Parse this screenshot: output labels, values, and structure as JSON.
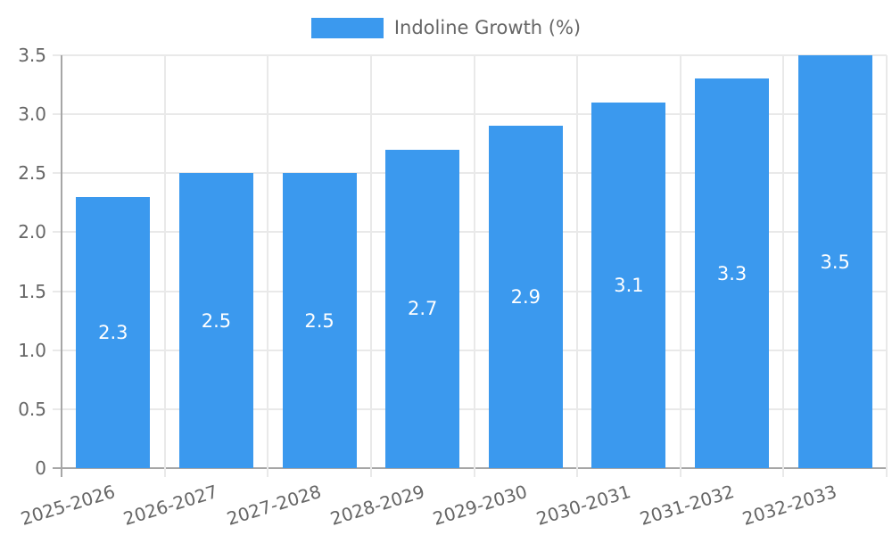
{
  "legend": {
    "label": "Indoline Growth (%)"
  },
  "chart_data": {
    "type": "bar",
    "title": "Indoline Growth (%)",
    "series_name": "Indoline Growth (%)",
    "categories": [
      "2025-2026",
      "2026-2027",
      "2027-2028",
      "2028-2029",
      "2029-2030",
      "2030-2031",
      "2031-2032",
      "2032-2033"
    ],
    "values": [
      2.3,
      2.5,
      2.5,
      2.7,
      2.9,
      3.1,
      3.3,
      3.5
    ],
    "value_labels": [
      "2.3",
      "2.5",
      "2.5",
      "2.7",
      "2.9",
      "3.1",
      "3.3",
      "3.5"
    ],
    "xlabel": "",
    "ylabel": "",
    "ylim": [
      0,
      3.5
    ],
    "yticks": [
      {
        "value": 3.5,
        "label": "3.5"
      },
      {
        "value": 3.0,
        "label": "3.0"
      },
      {
        "value": 2.5,
        "label": "2.5"
      },
      {
        "value": 2.0,
        "label": "2.0"
      },
      {
        "value": 1.5,
        "label": "1.5"
      },
      {
        "value": 1.0,
        "label": "1.0"
      },
      {
        "value": 0.5,
        "label": "0.5"
      },
      {
        "value": 0,
        "label": "0"
      }
    ],
    "grid": true,
    "legend_position": "top",
    "x_label_rotation_deg": -17,
    "bar_color": "#3B99EE",
    "value_label_color": "#ffffff",
    "tick_text_color": "#666666",
    "gridline_color": "#e9e9e9",
    "axis_line_color": "#a6a6a6"
  }
}
